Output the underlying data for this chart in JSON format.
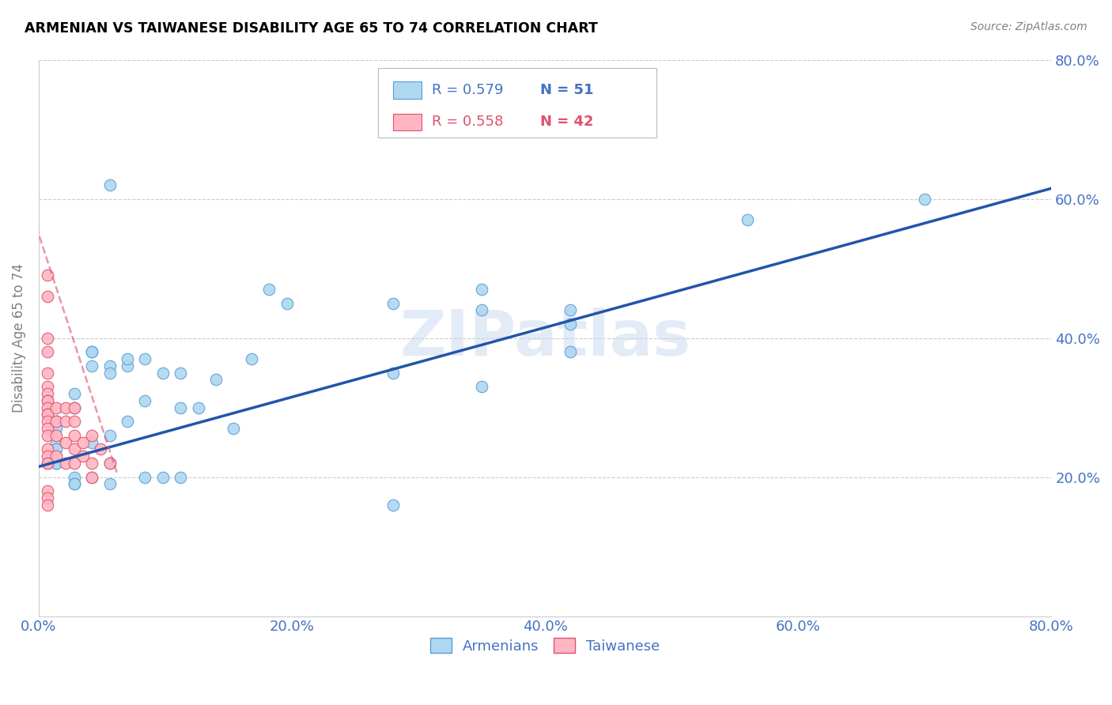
{
  "title": "ARMENIAN VS TAIWANESE DISABILITY AGE 65 TO 74 CORRELATION CHART",
  "source": "Source: ZipAtlas.com",
  "ylabel": "Disability Age 65 to 74",
  "xmin": 0.0,
  "xmax": 0.8,
  "ymin": 0.0,
  "ymax": 0.8,
  "armenian_color": "#ADD8F0",
  "armenian_edge_color": "#5B9BD5",
  "taiwanese_color": "#FFB6C1",
  "taiwanese_edge_color": "#E05070",
  "trend_armenian_color": "#2255AA",
  "trend_taiwanese_color": "#E05070",
  "tick_label_color": "#4472C4",
  "watermark": "ZIPatlas",
  "legend_r_armenian": "R = 0.579",
  "legend_n_armenian": "N = 51",
  "legend_r_taiwanese": "R = 0.558",
  "legend_n_taiwanese": "N = 42",
  "armenian_x": [
    0.028,
    0.042,
    0.056,
    0.056,
    0.07,
    0.07,
    0.07,
    0.056,
    0.028,
    0.014,
    0.014,
    0.014,
    0.014,
    0.014,
    0.014,
    0.014,
    0.028,
    0.028,
    0.028,
    0.042,
    0.042,
    0.042,
    0.042,
    0.056,
    0.056,
    0.056,
    0.084,
    0.084,
    0.084,
    0.098,
    0.098,
    0.112,
    0.112,
    0.112,
    0.126,
    0.14,
    0.154,
    0.168,
    0.182,
    0.196,
    0.28,
    0.28,
    0.28,
    0.35,
    0.35,
    0.35,
    0.42,
    0.42,
    0.42,
    0.56,
    0.7
  ],
  "armenian_y": [
    0.3,
    0.38,
    0.62,
    0.26,
    0.36,
    0.37,
    0.28,
    0.22,
    0.32,
    0.28,
    0.28,
    0.27,
    0.25,
    0.24,
    0.22,
    0.22,
    0.2,
    0.19,
    0.19,
    0.38,
    0.36,
    0.25,
    0.2,
    0.36,
    0.35,
    0.19,
    0.37,
    0.31,
    0.2,
    0.35,
    0.2,
    0.35,
    0.3,
    0.2,
    0.3,
    0.34,
    0.27,
    0.37,
    0.47,
    0.45,
    0.45,
    0.35,
    0.16,
    0.47,
    0.44,
    0.33,
    0.44,
    0.42,
    0.38,
    0.57,
    0.6
  ],
  "taiwanese_x": [
    0.007,
    0.007,
    0.007,
    0.007,
    0.007,
    0.007,
    0.007,
    0.007,
    0.007,
    0.007,
    0.007,
    0.007,
    0.007,
    0.007,
    0.007,
    0.007,
    0.007,
    0.007,
    0.007,
    0.007,
    0.007,
    0.007,
    0.014,
    0.014,
    0.014,
    0.014,
    0.021,
    0.021,
    0.021,
    0.021,
    0.028,
    0.028,
    0.028,
    0.028,
    0.028,
    0.035,
    0.035,
    0.042,
    0.042,
    0.042,
    0.049,
    0.056
  ],
  "taiwanese_y": [
    0.49,
    0.46,
    0.4,
    0.38,
    0.35,
    0.33,
    0.32,
    0.31,
    0.31,
    0.3,
    0.29,
    0.29,
    0.28,
    0.27,
    0.26,
    0.24,
    0.23,
    0.22,
    0.22,
    0.18,
    0.17,
    0.16,
    0.3,
    0.28,
    0.26,
    0.23,
    0.3,
    0.28,
    0.25,
    0.22,
    0.3,
    0.28,
    0.26,
    0.24,
    0.22,
    0.25,
    0.23,
    0.26,
    0.22,
    0.2,
    0.24,
    0.22
  ],
  "armenian_trend_x": [
    0.0,
    0.8
  ],
  "armenian_trend_y": [
    0.215,
    0.615
  ],
  "taiwanese_trend_x": [
    -0.002,
    0.062
  ],
  "taiwanese_trend_y": [
    0.56,
    0.205
  ],
  "xtick_vals": [
    0.0,
    0.2,
    0.4,
    0.6,
    0.8
  ],
  "ytick_vals": [
    0.2,
    0.4,
    0.6,
    0.8
  ]
}
